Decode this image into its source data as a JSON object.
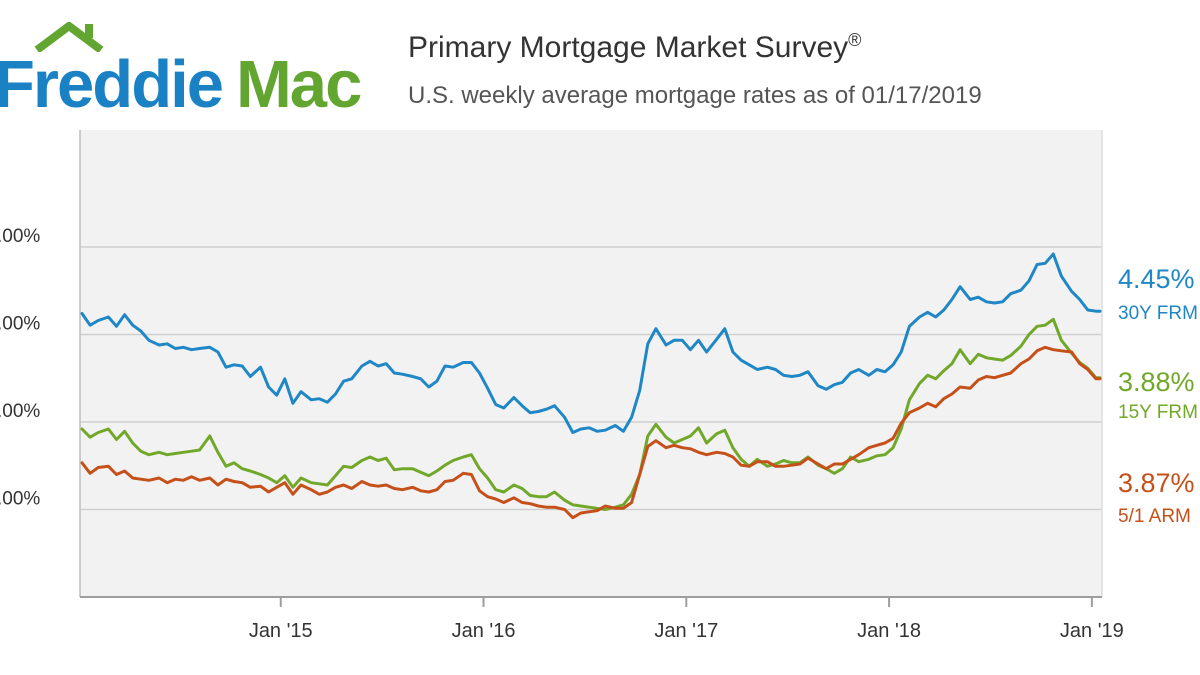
{
  "logo": {
    "word1": "Freddie",
    "word2": "Mac"
  },
  "header": {
    "title": "Primary Mortgage Market Survey",
    "title_mark": "®",
    "subtitle": "U.S. weekly average mortgage rates as of 01/17/2019"
  },
  "colors": {
    "30y": "#1f87c6",
    "15y": "#71a82a",
    "arm": "#c5501a",
    "logo_blue": "#1a82c4",
    "logo_green": "#62a531",
    "plot_bg": "#f2f2f2"
  },
  "chart_data": {
    "type": "line",
    "title": "Primary Mortgage Market Survey®",
    "subtitle": "U.S. weekly average mortgage rates as of 01/17/2019",
    "ylim": [
      2.0,
      5.0
    ],
    "y_ticks": [
      ".00%",
      ".00%",
      ".00%",
      ".00%"
    ],
    "x_ticks": [
      "Jan '15",
      "Jan '16",
      "Jan '17",
      "Jan '18",
      "Jan '19"
    ],
    "x_tick_years": [
      2015,
      2016,
      2017,
      2018,
      2019
    ],
    "x_range": [
      2014.01,
      2019.05
    ],
    "grid": true,
    "series": [
      {
        "key": "30y",
        "name": "30Y FRM",
        "end_value": "4.45%",
        "x": [
          2014.02,
          2014.06,
          2014.1,
          2014.15,
          2014.19,
          2014.23,
          2014.27,
          2014.31,
          2014.35,
          2014.4,
          2014.44,
          2014.48,
          2014.52,
          2014.56,
          2014.6,
          2014.65,
          2014.69,
          2014.73,
          2014.77,
          2014.81,
          2014.85,
          2014.9,
          2014.94,
          2014.98,
          2015.02,
          2015.06,
          2015.1,
          2015.15,
          2015.19,
          2015.23,
          2015.27,
          2015.31,
          2015.35,
          2015.4,
          2015.44,
          2015.48,
          2015.52,
          2015.56,
          2015.6,
          2015.65,
          2015.69,
          2015.73,
          2015.77,
          2015.81,
          2015.85,
          2015.9,
          2015.94,
          2015.98,
          2016.02,
          2016.06,
          2016.1,
          2016.15,
          2016.19,
          2016.23,
          2016.27,
          2016.31,
          2016.35,
          2016.4,
          2016.44,
          2016.48,
          2016.52,
          2016.56,
          2016.6,
          2016.65,
          2016.69,
          2016.73,
          2016.77,
          2016.81,
          2016.85,
          2016.9,
          2016.94,
          2016.98,
          2017.02,
          2017.06,
          2017.1,
          2017.15,
          2017.19,
          2017.23,
          2017.27,
          2017.31,
          2017.35,
          2017.4,
          2017.44,
          2017.48,
          2017.52,
          2017.56,
          2017.6,
          2017.65,
          2017.69,
          2017.73,
          2017.77,
          2017.81,
          2017.85,
          2017.9,
          2017.94,
          2017.98,
          2018.02,
          2018.06,
          2018.1,
          2018.15,
          2018.19,
          2018.23,
          2018.27,
          2018.31,
          2018.35,
          2018.4,
          2018.44,
          2018.48,
          2018.52,
          2018.56,
          2018.6,
          2018.65,
          2018.69,
          2018.73,
          2018.77,
          2018.81,
          2018.85,
          2018.9,
          2018.94,
          2018.98,
          2019.02,
          2019.04
        ],
        "values": [
          4.43,
          4.33,
          4.37,
          4.4,
          4.32,
          4.42,
          4.33,
          4.28,
          4.2,
          4.16,
          4.17,
          4.13,
          4.14,
          4.12,
          4.13,
          4.14,
          4.1,
          3.97,
          3.99,
          3.98,
          3.89,
          3.97,
          3.8,
          3.73,
          3.87,
          3.66,
          3.76,
          3.69,
          3.7,
          3.67,
          3.74,
          3.85,
          3.87,
          3.98,
          4.02,
          3.98,
          4.0,
          3.92,
          3.91,
          3.89,
          3.87,
          3.8,
          3.85,
          3.98,
          3.97,
          4.01,
          4.01,
          3.92,
          3.79,
          3.65,
          3.62,
          3.71,
          3.64,
          3.58,
          3.59,
          3.61,
          3.64,
          3.54,
          3.41,
          3.44,
          3.45,
          3.42,
          3.43,
          3.47,
          3.42,
          3.54,
          3.77,
          4.17,
          4.3,
          4.16,
          4.2,
          4.2,
          4.12,
          4.2,
          4.1,
          4.21,
          4.3,
          4.1,
          4.03,
          3.99,
          3.95,
          3.97,
          3.95,
          3.9,
          3.89,
          3.9,
          3.93,
          3.81,
          3.78,
          3.82,
          3.84,
          3.92,
          3.95,
          3.9,
          3.95,
          3.93,
          3.99,
          4.1,
          4.32,
          4.4,
          4.44,
          4.4,
          4.46,
          4.55,
          4.66,
          4.55,
          4.57,
          4.53,
          4.52,
          4.53,
          4.6,
          4.63,
          4.71,
          4.85,
          4.86,
          4.94,
          4.75,
          4.62,
          4.55,
          4.46,
          4.45,
          4.45
        ]
      },
      {
        "key": "15y",
        "name": "15Y FRM",
        "end_value": "3.88%",
        "x": [
          2014.02,
          2014.06,
          2014.1,
          2014.15,
          2014.19,
          2014.23,
          2014.27,
          2014.31,
          2014.35,
          2014.4,
          2014.44,
          2014.48,
          2014.52,
          2014.56,
          2014.6,
          2014.65,
          2014.69,
          2014.73,
          2014.77,
          2014.81,
          2014.85,
          2014.9,
          2014.94,
          2014.98,
          2015.02,
          2015.06,
          2015.1,
          2015.15,
          2015.19,
          2015.23,
          2015.27,
          2015.31,
          2015.35,
          2015.4,
          2015.44,
          2015.48,
          2015.52,
          2015.56,
          2015.6,
          2015.65,
          2015.69,
          2015.73,
          2015.77,
          2015.81,
          2015.85,
          2015.9,
          2015.94,
          2015.98,
          2016.02,
          2016.06,
          2016.1,
          2016.15,
          2016.19,
          2016.23,
          2016.27,
          2016.31,
          2016.35,
          2016.4,
          2016.44,
          2016.48,
          2016.52,
          2016.56,
          2016.6,
          2016.65,
          2016.69,
          2016.73,
          2016.77,
          2016.81,
          2016.85,
          2016.9,
          2016.94,
          2016.98,
          2017.02,
          2017.06,
          2017.1,
          2017.15,
          2017.19,
          2017.23,
          2017.27,
          2017.31,
          2017.35,
          2017.4,
          2017.44,
          2017.48,
          2017.52,
          2017.56,
          2017.6,
          2017.65,
          2017.69,
          2017.73,
          2017.77,
          2017.81,
          2017.85,
          2017.9,
          2017.94,
          2017.98,
          2018.02,
          2018.06,
          2018.1,
          2018.15,
          2018.19,
          2018.23,
          2018.27,
          2018.31,
          2018.35,
          2018.4,
          2018.44,
          2018.48,
          2018.52,
          2018.56,
          2018.6,
          2018.65,
          2018.69,
          2018.73,
          2018.77,
          2018.81,
          2018.85,
          2018.9,
          2018.94,
          2018.98,
          2019.02,
          2019.04
        ],
        "values": [
          3.44,
          3.37,
          3.41,
          3.44,
          3.35,
          3.42,
          3.32,
          3.25,
          3.22,
          3.24,
          3.22,
          3.23,
          3.24,
          3.25,
          3.26,
          3.38,
          3.24,
          3.12,
          3.15,
          3.1,
          3.08,
          3.05,
          3.02,
          2.98,
          3.04,
          2.94,
          3.02,
          2.98,
          2.97,
          2.96,
          3.04,
          3.12,
          3.11,
          3.17,
          3.2,
          3.17,
          3.19,
          3.09,
          3.1,
          3.1,
          3.07,
          3.04,
          3.08,
          3.13,
          3.17,
          3.2,
          3.22,
          3.1,
          3.02,
          2.92,
          2.9,
          2.96,
          2.93,
          2.87,
          2.86,
          2.86,
          2.9,
          2.83,
          2.79,
          2.78,
          2.77,
          2.76,
          2.75,
          2.77,
          2.79,
          2.88,
          3.05,
          3.38,
          3.48,
          3.37,
          3.32,
          3.35,
          3.38,
          3.45,
          3.32,
          3.4,
          3.43,
          3.28,
          3.18,
          3.12,
          3.18,
          3.12,
          3.14,
          3.17,
          3.15,
          3.15,
          3.2,
          3.13,
          3.1,
          3.06,
          3.1,
          3.2,
          3.16,
          3.18,
          3.21,
          3.22,
          3.28,
          3.44,
          3.69,
          3.83,
          3.9,
          3.87,
          3.94,
          4.0,
          4.12,
          4.0,
          4.08,
          4.05,
          4.04,
          4.03,
          4.07,
          4.15,
          4.25,
          4.32,
          4.33,
          4.38,
          4.2,
          4.09,
          4.01,
          3.96,
          3.88,
          3.88
        ]
      },
      {
        "key": "arm",
        "name": "5/1 ARM",
        "end_value": "3.87%",
        "x": [
          2014.02,
          2014.06,
          2014.1,
          2014.15,
          2014.19,
          2014.23,
          2014.27,
          2014.31,
          2014.35,
          2014.4,
          2014.44,
          2014.48,
          2014.52,
          2014.56,
          2014.6,
          2014.65,
          2014.69,
          2014.73,
          2014.77,
          2014.81,
          2014.85,
          2014.9,
          2014.94,
          2014.98,
          2015.02,
          2015.06,
          2015.1,
          2015.15,
          2015.19,
          2015.23,
          2015.27,
          2015.31,
          2015.35,
          2015.4,
          2015.44,
          2015.48,
          2015.52,
          2015.56,
          2015.6,
          2015.65,
          2015.69,
          2015.73,
          2015.77,
          2015.81,
          2015.85,
          2015.9,
          2015.94,
          2015.98,
          2016.02,
          2016.06,
          2016.1,
          2016.15,
          2016.19,
          2016.23,
          2016.27,
          2016.31,
          2016.35,
          2016.4,
          2016.44,
          2016.48,
          2016.52,
          2016.56,
          2016.6,
          2016.65,
          2016.69,
          2016.73,
          2016.77,
          2016.81,
          2016.85,
          2016.9,
          2016.94,
          2016.98,
          2017.02,
          2017.06,
          2017.1,
          2017.15,
          2017.19,
          2017.23,
          2017.27,
          2017.31,
          2017.35,
          2017.4,
          2017.44,
          2017.48,
          2017.52,
          2017.56,
          2017.6,
          2017.65,
          2017.69,
          2017.73,
          2017.77,
          2017.81,
          2017.85,
          2017.9,
          2017.94,
          2017.98,
          2018.02,
          2018.06,
          2018.1,
          2018.15,
          2018.19,
          2018.23,
          2018.27,
          2018.31,
          2018.35,
          2018.4,
          2018.44,
          2018.48,
          2018.52,
          2018.56,
          2018.6,
          2018.65,
          2018.69,
          2018.73,
          2018.77,
          2018.81,
          2018.85,
          2018.9,
          2018.94,
          2018.98,
          2019.02,
          2019.04
        ],
        "values": [
          3.15,
          3.06,
          3.11,
          3.12,
          3.05,
          3.08,
          3.02,
          3.01,
          3.0,
          3.02,
          2.98,
          3.01,
          3.0,
          3.03,
          3.0,
          3.02,
          2.96,
          3.01,
          2.99,
          2.98,
          2.94,
          2.95,
          2.9,
          2.94,
          2.98,
          2.88,
          2.96,
          2.92,
          2.88,
          2.9,
          2.94,
          2.96,
          2.93,
          2.99,
          2.96,
          2.95,
          2.96,
          2.93,
          2.92,
          2.94,
          2.91,
          2.9,
          2.92,
          2.99,
          3.0,
          3.06,
          3.05,
          2.91,
          2.86,
          2.84,
          2.81,
          2.85,
          2.81,
          2.8,
          2.78,
          2.77,
          2.77,
          2.75,
          2.68,
          2.72,
          2.73,
          2.74,
          2.78,
          2.76,
          2.76,
          2.81,
          3.05,
          3.29,
          3.34,
          3.28,
          3.3,
          3.28,
          3.27,
          3.24,
          3.22,
          3.24,
          3.23,
          3.2,
          3.13,
          3.12,
          3.16,
          3.16,
          3.12,
          3.12,
          3.13,
          3.14,
          3.19,
          3.14,
          3.1,
          3.14,
          3.14,
          3.18,
          3.22,
          3.28,
          3.3,
          3.32,
          3.36,
          3.49,
          3.58,
          3.62,
          3.66,
          3.63,
          3.7,
          3.74,
          3.8,
          3.79,
          3.86,
          3.89,
          3.88,
          3.9,
          3.92,
          4.0,
          4.04,
          4.11,
          4.14,
          4.12,
          4.11,
          4.1,
          4.0,
          3.95,
          3.87,
          3.87
        ]
      }
    ]
  }
}
